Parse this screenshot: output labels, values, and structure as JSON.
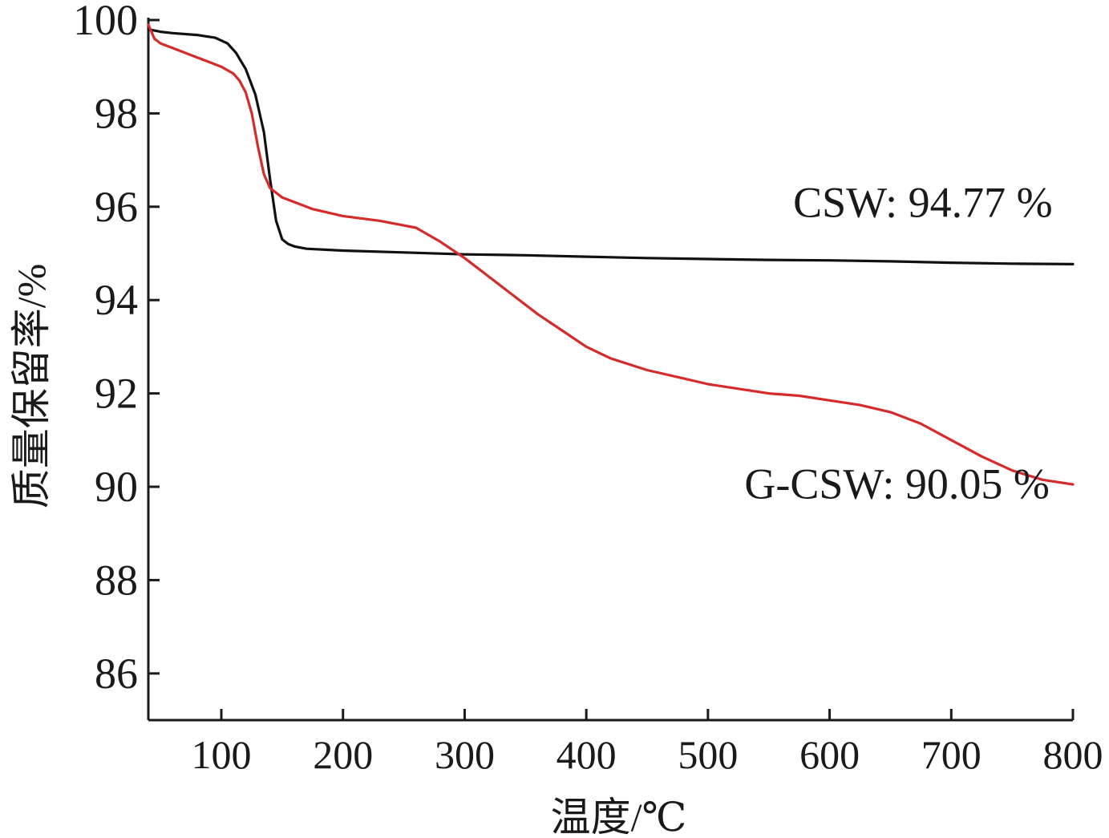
{
  "chart_data": {
    "type": "line",
    "title": "",
    "xlabel": "温度/℃",
    "ylabel": "质量保留率/%",
    "xlim": [
      40,
      800
    ],
    "ylim": [
      85,
      100
    ],
    "xticks": [
      100,
      200,
      300,
      400,
      500,
      600,
      700,
      800
    ],
    "yticks": [
      86,
      88,
      90,
      92,
      94,
      96,
      98,
      100
    ],
    "grid": false,
    "legend": "none",
    "series": [
      {
        "name": "CSW",
        "color": "#111111",
        "x": [
          40,
          50,
          60,
          80,
          95,
          105,
          112,
          120,
          128,
          135,
          140,
          145,
          150,
          155,
          160,
          170,
          200,
          250,
          300,
          350,
          400,
          450,
          500,
          550,
          600,
          650,
          700,
          750,
          800
        ],
        "y": [
          99.8,
          99.75,
          99.72,
          99.68,
          99.62,
          99.5,
          99.3,
          98.95,
          98.4,
          97.6,
          96.6,
          95.7,
          95.3,
          95.2,
          95.15,
          95.1,
          95.06,
          95.02,
          94.98,
          94.96,
          94.93,
          94.9,
          94.88,
          94.86,
          94.85,
          94.83,
          94.8,
          94.78,
          94.77
        ]
      },
      {
        "name": "G-CSW",
        "color": "#d62b2b",
        "x": [
          40,
          45,
          50,
          60,
          70,
          80,
          90,
          100,
          110,
          115,
          120,
          125,
          130,
          135,
          140,
          150,
          160,
          175,
          200,
          230,
          260,
          280,
          300,
          320,
          340,
          360,
          380,
          400,
          420,
          450,
          475,
          500,
          525,
          550,
          575,
          600,
          625,
          650,
          675,
          700,
          725,
          750,
          775,
          800
        ],
        "y": [
          99.9,
          99.6,
          99.5,
          99.4,
          99.3,
          99.2,
          99.1,
          99.0,
          98.85,
          98.7,
          98.45,
          98.0,
          97.3,
          96.7,
          96.4,
          96.2,
          96.1,
          95.95,
          95.8,
          95.7,
          95.55,
          95.25,
          94.9,
          94.5,
          94.1,
          93.7,
          93.35,
          93.0,
          92.75,
          92.5,
          92.35,
          92.2,
          92.1,
          92.0,
          91.95,
          91.85,
          91.75,
          91.6,
          91.35,
          91.0,
          90.65,
          90.35,
          90.15,
          90.05
        ]
      }
    ],
    "annotations": [
      {
        "text": "CSW: 94.77 %",
        "x": 570,
        "y": 95.78
      },
      {
        "text": "G-CSW: 90.05 %",
        "x": 530,
        "y": 89.75
      }
    ]
  }
}
